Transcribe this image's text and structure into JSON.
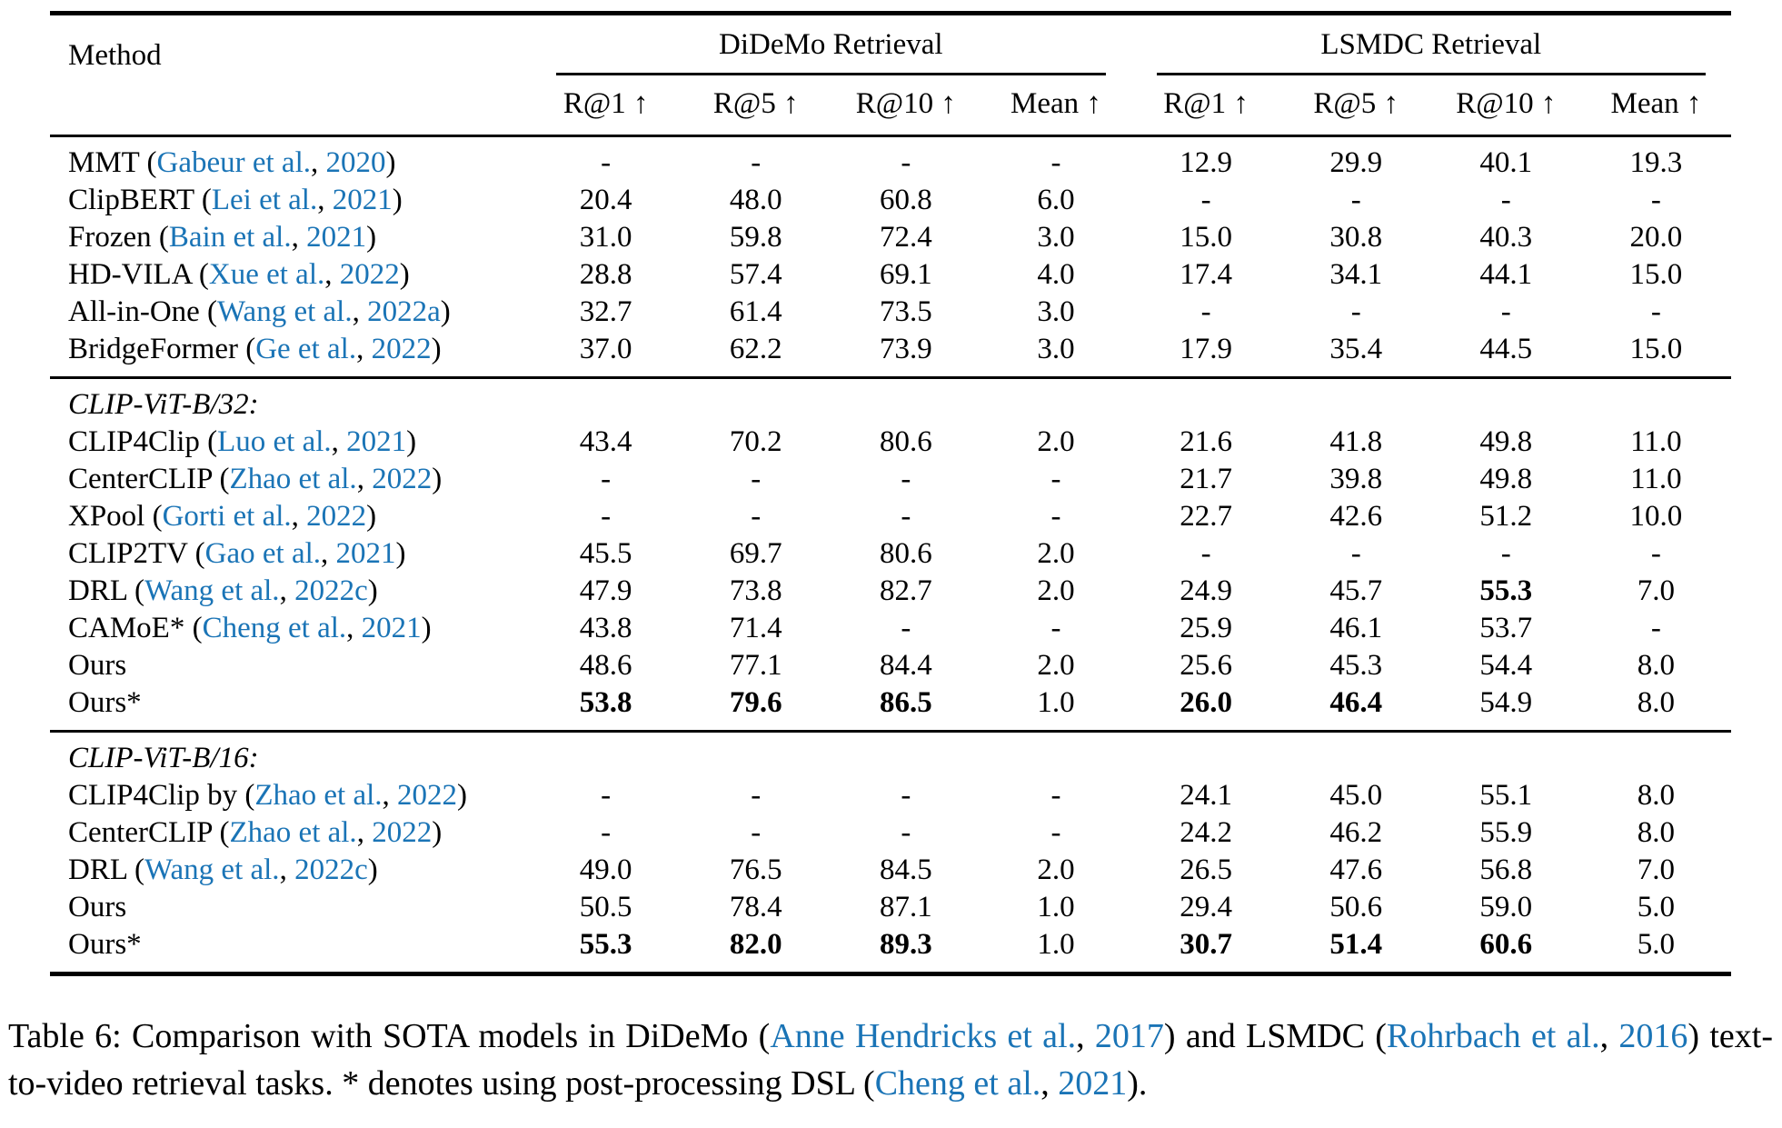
{
  "page": {
    "background": "#ffffff",
    "text_color": "#000000",
    "link_color": "#1a74b6"
  },
  "table": {
    "method_header": "Method",
    "groups": [
      {
        "label": "DiDeMo Retrieval",
        "columns": [
          "R@1 ↑",
          "R@5 ↑",
          "R@10 ↑",
          "Mean ↑"
        ]
      },
      {
        "label": "LSMDC Retrieval",
        "columns": [
          "R@1 ↑",
          "R@5 ↑",
          "R@10 ↑",
          "Mean ↑"
        ]
      }
    ],
    "sections": [
      {
        "label": "",
        "rows": [
          {
            "method": [
              {
                "t": "MMT (",
                "l": false
              },
              {
                "t": "Gabeur et al.",
                "l": true
              },
              {
                "t": ", ",
                "l": false
              },
              {
                "t": "2020",
                "l": true
              },
              {
                "t": ")",
                "l": false
              }
            ],
            "values": [
              "-",
              "-",
              "-",
              "-",
              "12.9",
              "29.9",
              "40.1",
              "19.3"
            ],
            "bold": []
          },
          {
            "method": [
              {
                "t": "ClipBERT (",
                "l": false
              },
              {
                "t": "Lei et al.",
                "l": true
              },
              {
                "t": ", ",
                "l": false
              },
              {
                "t": "2021",
                "l": true
              },
              {
                "t": ")",
                "l": false
              }
            ],
            "values": [
              "20.4",
              "48.0",
              "60.8",
              "6.0",
              "-",
              "-",
              "-",
              "-"
            ],
            "bold": []
          },
          {
            "method": [
              {
                "t": "Frozen (",
                "l": false
              },
              {
                "t": "Bain et al.",
                "l": true
              },
              {
                "t": ", ",
                "l": false
              },
              {
                "t": "2021",
                "l": true
              },
              {
                "t": ")",
                "l": false
              }
            ],
            "values": [
              "31.0",
              "59.8",
              "72.4",
              "3.0",
              "15.0",
              "30.8",
              "40.3",
              "20.0"
            ],
            "bold": []
          },
          {
            "method": [
              {
                "t": "HD-VILA (",
                "l": false
              },
              {
                "t": "Xue et al.",
                "l": true
              },
              {
                "t": ", ",
                "l": false
              },
              {
                "t": "2022",
                "l": true
              },
              {
                "t": ")",
                "l": false
              }
            ],
            "values": [
              "28.8",
              "57.4",
              "69.1",
              "4.0",
              "17.4",
              "34.1",
              "44.1",
              "15.0"
            ],
            "bold": []
          },
          {
            "method": [
              {
                "t": "All-in-One (",
                "l": false
              },
              {
                "t": "Wang et al.",
                "l": true
              },
              {
                "t": ", ",
                "l": false
              },
              {
                "t": "2022a",
                "l": true
              },
              {
                "t": ")",
                "l": false
              }
            ],
            "values": [
              "32.7",
              "61.4",
              "73.5",
              "3.0",
              "-",
              "-",
              "-",
              "-"
            ],
            "bold": []
          },
          {
            "method": [
              {
                "t": "BridgeFormer (",
                "l": false
              },
              {
                "t": "Ge et al.",
                "l": true
              },
              {
                "t": ", ",
                "l": false
              },
              {
                "t": "2022",
                "l": true
              },
              {
                "t": ")",
                "l": false
              }
            ],
            "values": [
              "37.0",
              "62.2",
              "73.9",
              "3.0",
              "17.9",
              "35.4",
              "44.5",
              "15.0"
            ],
            "bold": []
          }
        ]
      },
      {
        "label": "CLIP-ViT-B/32:",
        "rows": [
          {
            "method": [
              {
                "t": "CLIP4Clip (",
                "l": false
              },
              {
                "t": "Luo et al.",
                "l": true
              },
              {
                "t": ", ",
                "l": false
              },
              {
                "t": "2021",
                "l": true
              },
              {
                "t": ")",
                "l": false
              }
            ],
            "values": [
              "43.4",
              "70.2",
              "80.6",
              "2.0",
              "21.6",
              "41.8",
              "49.8",
              "11.0"
            ],
            "bold": []
          },
          {
            "method": [
              {
                "t": "CenterCLIP (",
                "l": false
              },
              {
                "t": "Zhao et al.",
                "l": true
              },
              {
                "t": ", ",
                "l": false
              },
              {
                "t": "2022",
                "l": true
              },
              {
                "t": ")",
                "l": false
              }
            ],
            "values": [
              "-",
              "-",
              "-",
              "-",
              "21.7",
              "39.8",
              "49.8",
              "11.0"
            ],
            "bold": []
          },
          {
            "method": [
              {
                "t": "XPool (",
                "l": false
              },
              {
                "t": "Gorti et al.",
                "l": true
              },
              {
                "t": ", ",
                "l": false
              },
              {
                "t": "2022",
                "l": true
              },
              {
                "t": ")",
                "l": false
              }
            ],
            "values": [
              "-",
              "-",
              "-",
              "-",
              "22.7",
              "42.6",
              "51.2",
              "10.0"
            ],
            "bold": []
          },
          {
            "method": [
              {
                "t": "CLIP2TV (",
                "l": false
              },
              {
                "t": "Gao et al.",
                "l": true
              },
              {
                "t": ", ",
                "l": false
              },
              {
                "t": "2021",
                "l": true
              },
              {
                "t": ")",
                "l": false
              }
            ],
            "values": [
              "45.5",
              "69.7",
              "80.6",
              "2.0",
              "-",
              "-",
              "-",
              "-"
            ],
            "bold": []
          },
          {
            "method": [
              {
                "t": "DRL (",
                "l": false
              },
              {
                "t": "Wang et al.",
                "l": true
              },
              {
                "t": ", ",
                "l": false
              },
              {
                "t": "2022c",
                "l": true
              },
              {
                "t": ")",
                "l": false
              }
            ],
            "values": [
              "47.9",
              "73.8",
              "82.7",
              "2.0",
              "24.9",
              "45.7",
              "55.3",
              "7.0"
            ],
            "bold": [
              6
            ]
          },
          {
            "method": [
              {
                "t": "CAMoE* (",
                "l": false
              },
              {
                "t": "Cheng et al.",
                "l": true
              },
              {
                "t": ", ",
                "l": false
              },
              {
                "t": "2021",
                "l": true
              },
              {
                "t": ")",
                "l": false
              }
            ],
            "values": [
              "43.8",
              "71.4",
              "-",
              "-",
              "25.9",
              "46.1",
              "53.7",
              "-"
            ],
            "bold": []
          },
          {
            "method": [
              {
                "t": "Ours",
                "l": false
              }
            ],
            "values": [
              "48.6",
              "77.1",
              "84.4",
              "2.0",
              "25.6",
              "45.3",
              "54.4",
              "8.0"
            ],
            "bold": []
          },
          {
            "method": [
              {
                "t": "Ours*",
                "l": false
              }
            ],
            "values": [
              "53.8",
              "79.6",
              "86.5",
              "1.0",
              "26.0",
              "46.4",
              "54.9",
              "8.0"
            ],
            "bold": [
              0,
              1,
              2,
              4,
              5
            ]
          }
        ]
      },
      {
        "label": "CLIP-ViT-B/16:",
        "rows": [
          {
            "method": [
              {
                "t": "CLIP4Clip by (",
                "l": false
              },
              {
                "t": "Zhao et al.",
                "l": true
              },
              {
                "t": ", ",
                "l": false
              },
              {
                "t": "2022",
                "l": true
              },
              {
                "t": ")",
                "l": false
              }
            ],
            "values": [
              "-",
              "-",
              "-",
              "-",
              "24.1",
              "45.0",
              "55.1",
              "8.0"
            ],
            "bold": []
          },
          {
            "method": [
              {
                "t": "CenterCLIP (",
                "l": false
              },
              {
                "t": "Zhao et al.",
                "l": true
              },
              {
                "t": ", ",
                "l": false
              },
              {
                "t": "2022",
                "l": true
              },
              {
                "t": ")",
                "l": false
              }
            ],
            "values": [
              "-",
              "-",
              "-",
              "-",
              "24.2",
              "46.2",
              "55.9",
              "8.0"
            ],
            "bold": []
          },
          {
            "method": [
              {
                "t": "DRL (",
                "l": false
              },
              {
                "t": "Wang et al.",
                "l": true
              },
              {
                "t": ", ",
                "l": false
              },
              {
                "t": "2022c",
                "l": true
              },
              {
                "t": ")",
                "l": false
              }
            ],
            "values": [
              "49.0",
              "76.5",
              "84.5",
              "2.0",
              "26.5",
              "47.6",
              "56.8",
              "7.0"
            ],
            "bold": []
          },
          {
            "method": [
              {
                "t": "Ours",
                "l": false
              }
            ],
            "values": [
              "50.5",
              "78.4",
              "87.1",
              "1.0",
              "29.4",
              "50.6",
              "59.0",
              "5.0"
            ],
            "bold": []
          },
          {
            "method": [
              {
                "t": "Ours*",
                "l": false
              }
            ],
            "values": [
              "55.3",
              "82.0",
              "89.3",
              "1.0",
              "30.7",
              "51.4",
              "60.6",
              "5.0"
            ],
            "bold": [
              0,
              1,
              2,
              4,
              5,
              6
            ]
          }
        ]
      }
    ]
  },
  "caption": {
    "segments": [
      {
        "t": "Table 6:  Comparison with SOTA models in DiDeMo (",
        "l": false
      },
      {
        "t": "Anne Hendricks et al.",
        "l": true
      },
      {
        "t": ", ",
        "l": false
      },
      {
        "t": "2017",
        "l": true
      },
      {
        "t": ") and LSMDC (",
        "l": false
      },
      {
        "t": "Rohrbach et al.",
        "l": true
      },
      {
        "t": ", ",
        "l": false
      },
      {
        "t": "2016",
        "l": true
      },
      {
        "t": ") text-to-video retrieval tasks. * denotes using post-processing DSL (",
        "l": false
      },
      {
        "t": "Cheng et al.",
        "l": true
      },
      {
        "t": ", ",
        "l": false
      },
      {
        "t": "2021",
        "l": true
      },
      {
        "t": ").",
        "l": false
      }
    ]
  }
}
